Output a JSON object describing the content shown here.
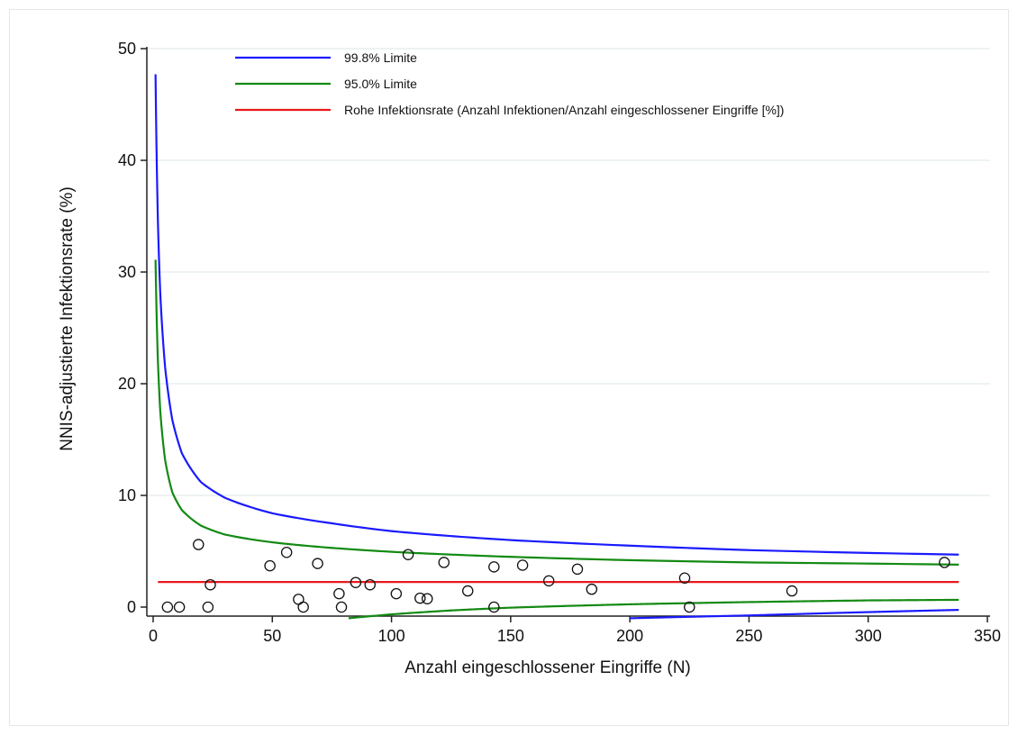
{
  "chart_data": {
    "type": "scatter",
    "title": "",
    "xlabel": "Anzahl eingeschlossener Eingriffe (N)",
    "ylabel": "NNIS-adjustierte Infektionsrate (%)",
    "xlim": [
      0,
      350
    ],
    "ylim": [
      0,
      50
    ],
    "xticks": [
      0,
      50,
      100,
      150,
      200,
      250,
      300,
      350
    ],
    "yticks": [
      0,
      10,
      20,
      30,
      40,
      50
    ],
    "grid": "horizontal",
    "legend_position": "top-left",
    "series": [
      {
        "name": "99.8% Limite",
        "kind": "line",
        "color": "#1a1aff",
        "segments": [
          [
            [
              1,
              47.7
            ],
            [
              2,
              34.5
            ],
            [
              3,
              28.0
            ],
            [
              5,
              21.5
            ],
            [
              8,
              16.8
            ],
            [
              12,
              13.8
            ],
            [
              20,
              11.2
            ],
            [
              30,
              9.8
            ],
            [
              50,
              8.4
            ],
            [
              75,
              7.5
            ],
            [
              100,
              6.8
            ],
            [
              150,
              6.0
            ],
            [
              200,
              5.5
            ],
            [
              250,
              5.1
            ],
            [
              300,
              4.85
            ],
            [
              338,
              4.7
            ]
          ],
          [
            [
              200,
              -1.0
            ],
            [
              250,
              -0.75
            ],
            [
              300,
              -0.45
            ],
            [
              338,
              -0.25
            ]
          ]
        ]
      },
      {
        "name": "95.0% Limite",
        "kind": "line",
        "color": "#138a13",
        "segments": [
          [
            [
              1,
              31.1
            ],
            [
              2,
              22.0
            ],
            [
              3,
              17.5
            ],
            [
              5,
              13.2
            ],
            [
              8,
              10.3
            ],
            [
              12,
              8.7
            ],
            [
              20,
              7.3
            ],
            [
              30,
              6.5
            ],
            [
              50,
              5.8
            ],
            [
              75,
              5.3
            ],
            [
              100,
              4.95
            ],
            [
              150,
              4.5
            ],
            [
              200,
              4.2
            ],
            [
              250,
              4.0
            ],
            [
              300,
              3.9
            ],
            [
              338,
              3.8
            ]
          ],
          [
            [
              82,
              -1.0
            ],
            [
              100,
              -0.65
            ],
            [
              125,
              -0.3
            ],
            [
              150,
              -0.05
            ],
            [
              200,
              0.25
            ],
            [
              250,
              0.45
            ],
            [
              300,
              0.6
            ],
            [
              338,
              0.65
            ]
          ]
        ]
      },
      {
        "name": "Rohe Infektionsrate (Anzahl Infektionen/Anzahl eingeschlossener Eingriffe [%])",
        "kind": "line",
        "color": "#e8191d",
        "segments": [
          [
            [
              2,
              2.25
            ],
            [
              338,
              2.25
            ]
          ]
        ]
      },
      {
        "kind": "points",
        "color": "#111111",
        "points": [
          [
            6,
            0
          ],
          [
            11,
            0
          ],
          [
            19,
            5.6
          ],
          [
            23,
            0
          ],
          [
            24,
            2.0
          ],
          [
            49,
            3.7
          ],
          [
            56,
            4.9
          ],
          [
            61,
            0.7
          ],
          [
            63,
            0
          ],
          [
            69,
            3.9
          ],
          [
            78,
            1.2
          ],
          [
            79,
            0
          ],
          [
            85,
            2.2
          ],
          [
            91,
            2.0
          ],
          [
            102,
            1.2
          ],
          [
            107,
            4.7
          ],
          [
            112,
            0.8
          ],
          [
            115,
            0.75
          ],
          [
            122,
            4.0
          ],
          [
            132,
            1.45
          ],
          [
            143,
            3.6
          ],
          [
            143,
            0
          ],
          [
            155,
            3.75
          ],
          [
            166,
            2.35
          ],
          [
            178,
            3.4
          ],
          [
            184,
            1.6
          ],
          [
            223,
            2.6
          ],
          [
            225,
            0
          ],
          [
            268,
            1.45
          ],
          [
            332,
            4.0
          ]
        ]
      }
    ]
  }
}
